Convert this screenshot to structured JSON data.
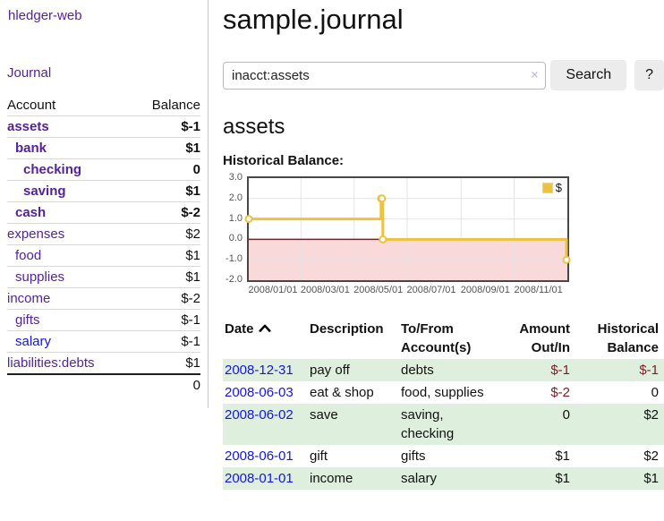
{
  "colors": {
    "brand_purple": "#552299",
    "link_blue": "#1515dd",
    "negative_strong": "#811c26",
    "negative_dim": "#bb7b7b",
    "row_highlight_green": "#deefde",
    "series_gold": "#edc240",
    "negative_region_pink": "#f9d9d9",
    "zero_line_red": "#911616",
    "axis_text": "#545454"
  },
  "app": {
    "brand": "hledger-web",
    "nav_journal": "Journal"
  },
  "sidebar": {
    "header": {
      "account": "Account",
      "balance": "Balance"
    },
    "accounts": [
      {
        "name": "assets",
        "balance": "$-1",
        "depth": 0,
        "bold": true,
        "neg": "strong"
      },
      {
        "name": "bank",
        "balance": "$1",
        "depth": 1,
        "bold": true
      },
      {
        "name": "checking",
        "balance": "0",
        "depth": 2,
        "bold": true
      },
      {
        "name": "saving",
        "balance": "$1",
        "depth": 2,
        "bold": true
      },
      {
        "name": "cash",
        "balance": "$-2",
        "depth": 1,
        "bold": true,
        "neg": "strong"
      },
      {
        "name": "expenses",
        "balance": "$2",
        "depth": 0
      },
      {
        "name": "food",
        "balance": "$1",
        "depth": 1
      },
      {
        "name": "supplies",
        "balance": "$1",
        "depth": 1
      },
      {
        "name": "income",
        "balance": "$-2",
        "depth": 0,
        "neg": "dim"
      },
      {
        "name": "gifts",
        "balance": "$-1",
        "depth": 1,
        "neg": "dim"
      },
      {
        "name": "salary",
        "balance": "$-1",
        "depth": 1,
        "neg": "dim",
        "link": "unvisited"
      },
      {
        "name": "liabilities:debts",
        "balance": "$1",
        "depth": 0
      }
    ],
    "total": "0"
  },
  "main": {
    "title": "sample.journal",
    "search": {
      "value": "inacct:assets",
      "clear_icon": "×",
      "button": "Search",
      "help": "?"
    },
    "account_heading": "assets",
    "chart_label": "Historical Balance:"
  },
  "chart_data": {
    "type": "line",
    "title": "Historical Balance:",
    "step": true,
    "series": [
      {
        "name": "$",
        "points": [
          [
            "2008-01-01",
            1
          ],
          [
            "2008-06-01",
            2
          ],
          [
            "2008-06-02",
            2
          ],
          [
            "2008-06-03",
            0
          ],
          [
            "2008-12-31",
            -1
          ]
        ]
      }
    ],
    "ylim": [
      -2,
      3
    ],
    "xlim": [
      "2008-01-01",
      "2009-01-01"
    ],
    "yticks": [
      "3.0",
      "2.0",
      "1.0",
      "0.0",
      "-1.0",
      "-2.0"
    ],
    "xticks": [
      "2008/01/01",
      "2008/03/01",
      "2008/05/01",
      "2008/07/01",
      "2008/09/01",
      "2008/11/01"
    ],
    "grid": true,
    "legend": "$",
    "legend_position": "top-right"
  },
  "register": {
    "headers": [
      "Date",
      "Description",
      "To/From Account(s)",
      "Amount Out/In",
      "Historical Balance"
    ],
    "sort_column": "Date",
    "sort_direction": "ascending",
    "rows": [
      {
        "date": "2008-12-31",
        "description": "pay off",
        "accounts": "debts",
        "amount": "$-1",
        "balance": "$-1"
      },
      {
        "date": "2008-06-03",
        "description": "eat & shop",
        "accounts": "food, supplies",
        "amount": "$-2",
        "balance": "0"
      },
      {
        "date": "2008-06-02",
        "description": "save",
        "accounts": "saving, checking",
        "amount": "0",
        "balance": "$2"
      },
      {
        "date": "2008-06-01",
        "description": "gift",
        "accounts": "gifts",
        "amount": "$1",
        "balance": "$2"
      },
      {
        "date": "2008-01-01",
        "description": "income",
        "accounts": "salary",
        "amount": "$1",
        "balance": "$1"
      }
    ]
  }
}
